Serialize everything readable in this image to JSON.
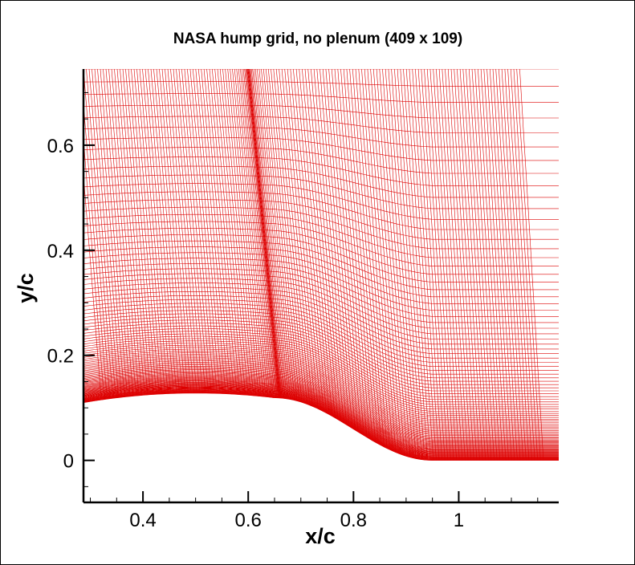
{
  "chart_data": {
    "type": "mesh",
    "title": "NASA hump grid, no plenum (409 x 109)",
    "xlabel": "x/c",
    "ylabel": "y/c",
    "grid_dims": {
      "i": 409,
      "j": 109
    },
    "xlim": [
      0.287,
      1.19
    ],
    "ylim": [
      -0.08,
      0.745
    ],
    "xticks": [
      {
        "v": 0.4,
        "label": "0.4"
      },
      {
        "v": 0.6,
        "label": "0.6"
      },
      {
        "v": 0.8,
        "label": "0.8"
      },
      {
        "v": 1.0,
        "label": "1"
      }
    ],
    "yticks": [
      {
        "v": 0,
        "label": "0"
      },
      {
        "v": 0.2,
        "label": "0.2"
      },
      {
        "v": 0.4,
        "label": "0.4"
      },
      {
        "v": 0.6,
        "label": "0.6"
      }
    ],
    "wall_profile": {
      "x": [
        0.287,
        0.4,
        0.5,
        0.6,
        0.65,
        0.7,
        0.8,
        0.9,
        0.95,
        1.0,
        1.19
      ],
      "y": [
        0.11,
        0.124,
        0.128,
        0.124,
        0.119,
        0.111,
        0.06,
        0.008,
        0.0,
        0.0,
        0.0
      ]
    },
    "line_color": "#dd0000"
  }
}
